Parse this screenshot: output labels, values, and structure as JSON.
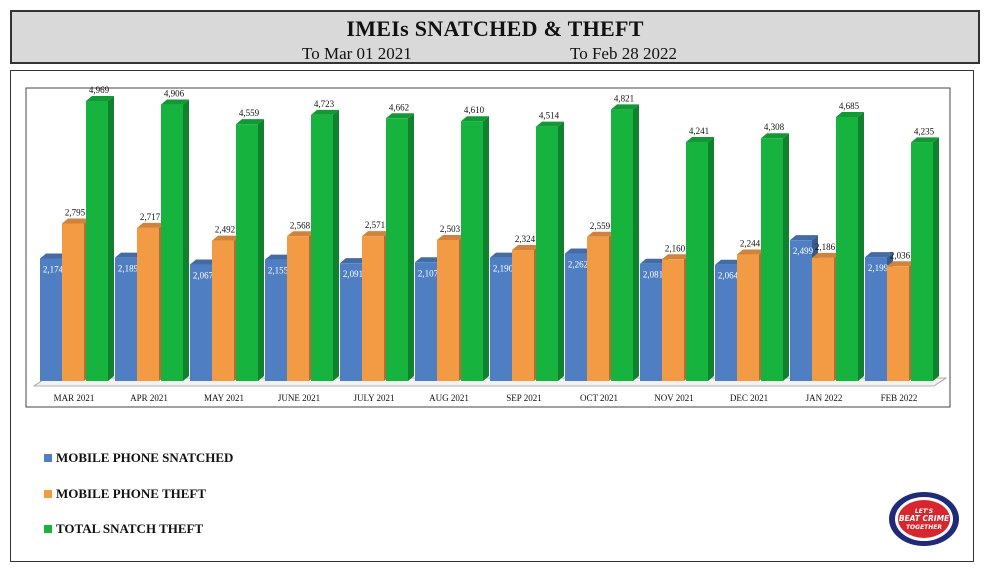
{
  "header": {
    "title": "IMEIs SNATCHED & THEFT",
    "from_label": "To Mar 01 2021",
    "to_label": "To Feb 28 2022"
  },
  "legend": [
    {
      "label": "MOBILE PHONE SNATCHED",
      "color": "#4f7fc2"
    },
    {
      "label": "MOBILE PHONE THEFT",
      "color": "#f39a45"
    },
    {
      "label": "TOTAL SNATCH THEFT",
      "color": "#16b33f"
    }
  ],
  "logo": {
    "text_top": "LET'S",
    "text_main": "BEAT CRIME",
    "text_bottom": "TOGETHER"
  },
  "chart_data": {
    "type": "bar",
    "categories": [
      "MAR 2021",
      "APR 2021",
      "MAY 2021",
      "JUNE 2021",
      "JULY 2021",
      "AUG 2021",
      "SEP 2021",
      "OCT 2021",
      "NOV 2021",
      "DEC 2021",
      "JAN 2022",
      "FEB 2022"
    ],
    "series": [
      {
        "name": "MOBILE PHONE SNATCHED",
        "color": "#4f7fc2",
        "values": [
          2174,
          2189,
          2067,
          2155,
          2091,
          2107,
          2190,
          2262,
          2081,
          2064,
          2499,
          2199
        ],
        "labels": [
          "2,174",
          "2,189",
          "2,067",
          "2,155",
          "2,091",
          "2,107",
          "2,190",
          "2,262",
          "2,081",
          "2,064",
          "2,499",
          "2,199"
        ]
      },
      {
        "name": "MOBILE PHONE THEFT",
        "color": "#f39a45",
        "values": [
          2795,
          2717,
          2492,
          2568,
          2571,
          2503,
          2324,
          2559,
          2160,
          2244,
          2186,
          2036
        ],
        "labels": [
          "2,795",
          "2,717",
          "2,492",
          "2,568",
          "2,571",
          "2,503",
          "2,324",
          "2,559",
          "2,160",
          "2,244",
          "2,186",
          "2,036"
        ]
      },
      {
        "name": "TOTAL SNATCH THEFT",
        "color": "#16b33f",
        "values": [
          4969,
          4906,
          4559,
          4723,
          4662,
          4610,
          4514,
          4821,
          4241,
          4308,
          4685,
          4235
        ],
        "labels": [
          "4,969",
          "4,906",
          "4,559",
          "4,723",
          "4,662",
          "4,610",
          "4,514",
          "4,821",
          "4,241",
          "4,308",
          "4,685",
          "4,235"
        ]
      }
    ],
    "ylim": [
      0,
      5000
    ],
    "grid": false,
    "legend_position": "bottom-left"
  }
}
